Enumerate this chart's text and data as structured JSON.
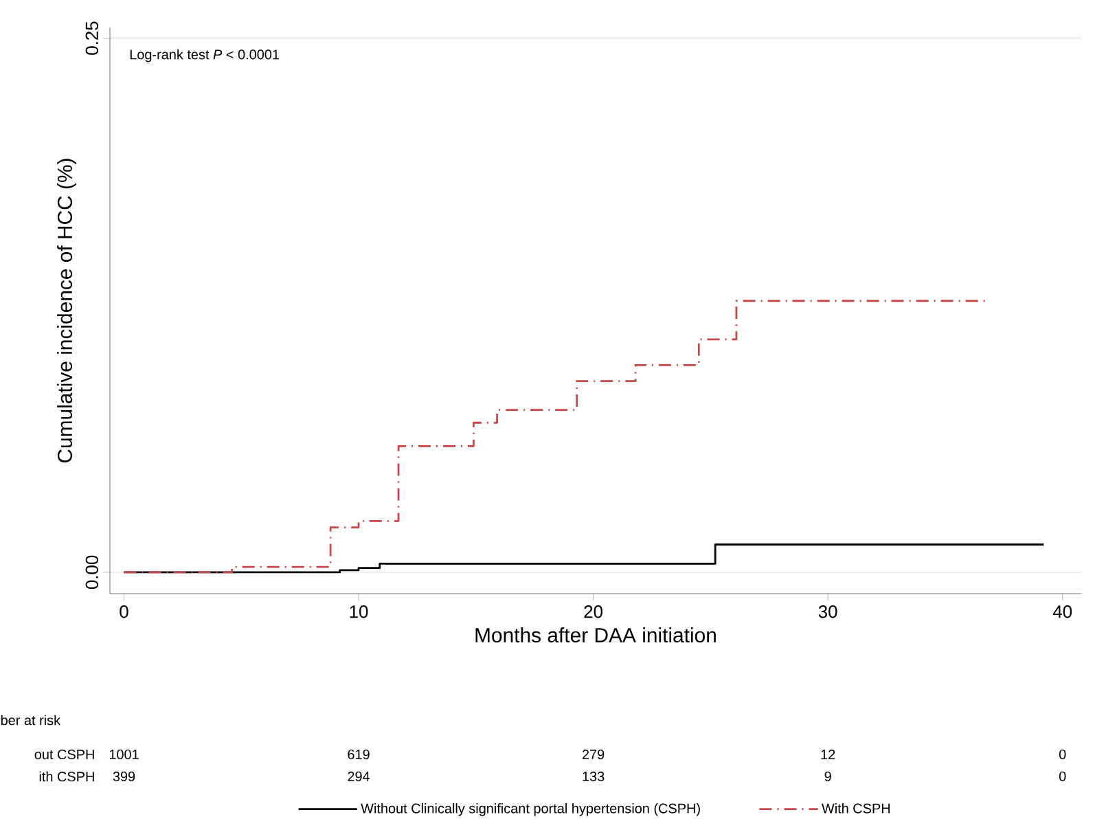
{
  "chart_data": {
    "type": "step",
    "xlabel": "Months after DAA initiation",
    "ylabel": "Cumulative incidence of HCC (%)",
    "xlim": [
      -0.6,
      40.8
    ],
    "ylim": [
      -0.01,
      0.255
    ],
    "xticks": [
      0,
      10,
      20,
      30,
      40
    ],
    "yticks": [
      {
        "value": 0,
        "label": "0.00"
      },
      {
        "value": 0.25,
        "label": "0.25"
      }
    ],
    "grid": "y",
    "legend": "bottom",
    "series": [
      {
        "name": "Without Clinically significant portal hypertension (CSPH)",
        "color": "#000000",
        "line_style": "solid",
        "x": [
          0,
          9.2,
          10,
          10.9,
          25.2,
          39.2
        ],
        "values": [
          0,
          0.001,
          0.002,
          0.004,
          0.013,
          0.013
        ]
      },
      {
        "name": "With CSPH",
        "color": "#c8474a",
        "line_style": "dashed",
        "x": [
          0,
          4.6,
          8.8,
          10,
          11.7,
          14.9,
          15.9,
          19.3,
          21.8,
          24.5,
          26.1,
          36.8
        ],
        "values": [
          0,
          0.0025,
          0.021,
          0.024,
          0.059,
          0.07,
          0.076,
          0.0895,
          0.097,
          0.109,
          0.127,
          0.127
        ]
      }
    ],
    "annotations": [
      "Log-rank test *P* < 0.0001",
      "ber at risk",
      "out CSPH",
      "1001",
      "619",
      "279",
      "12",
      "0",
      "ith CSPH",
      "399",
      "294",
      "133",
      "9",
      "0"
    ]
  }
}
